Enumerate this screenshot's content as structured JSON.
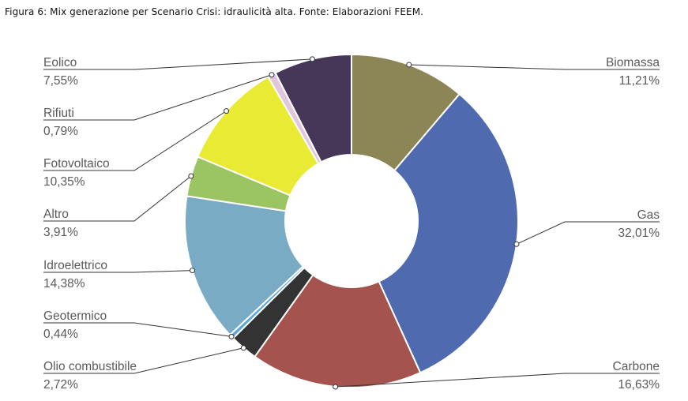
{
  "figure": {
    "caption": "Figura 6: Mix generazione per Scenario Crisi: idraulicità alta. Fonte: Elaborazioni FEEM."
  },
  "chart_data": {
    "type": "pie",
    "subtype": "donut",
    "title": "",
    "legend": "none",
    "slices": [
      {
        "label": "Biomassa",
        "value": 11.21,
        "display": "11,21%",
        "color": "#8c8656"
      },
      {
        "label": "Gas",
        "value": 32.01,
        "display": "32,01%",
        "color": "#4f6aaf"
      },
      {
        "label": "Carbone",
        "value": 16.63,
        "display": "16,63%",
        "color": "#a4534f"
      },
      {
        "label": "Olio combustibile",
        "value": 2.72,
        "display": "2,72%",
        "color": "#333333"
      },
      {
        "label": "Geotermico",
        "value": 0.44,
        "display": "0,44%",
        "color": "#5aa7dc"
      },
      {
        "label": "Idroelettrico",
        "value": 14.38,
        "display": "14,38%",
        "color": "#7aabc4"
      },
      {
        "label": "Altro",
        "value": 3.91,
        "display": "3,91%",
        "color": "#9bc463"
      },
      {
        "label": "Fotovoltaico",
        "value": 10.35,
        "display": "10,35%",
        "color": "#e8ea33"
      },
      {
        "label": "Rifiuti",
        "value": 0.79,
        "display": "0,79%",
        "color": "#e2c6de"
      },
      {
        "label": "Eolico",
        "value": 7.55,
        "display": "7,55%",
        "color": "#463658"
      }
    ]
  }
}
